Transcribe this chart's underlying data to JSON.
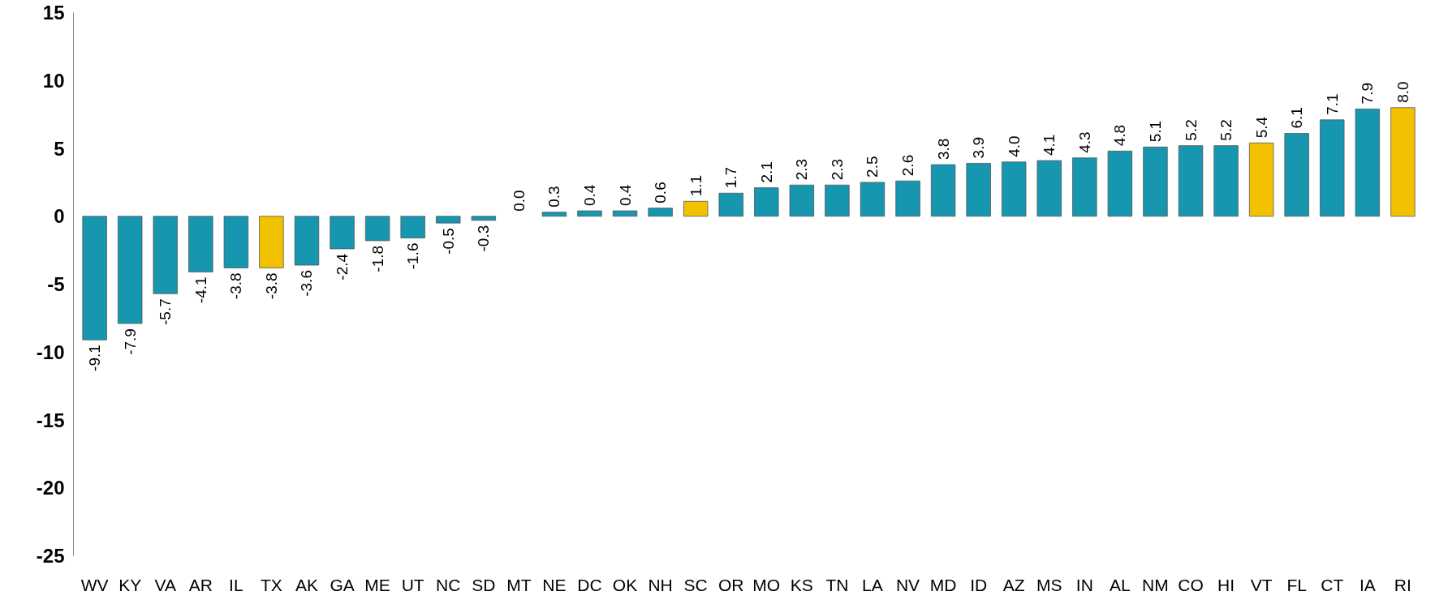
{
  "chart_data": {
    "type": "bar",
    "categories": [
      "WV",
      "KY",
      "VA",
      "AR",
      "IL",
      "TX",
      "AK",
      "GA",
      "ME",
      "UT",
      "NC",
      "SD",
      "MT",
      "NE",
      "DC",
      "OK",
      "NH",
      "SC",
      "OR",
      "MO",
      "KS",
      "TN",
      "LA",
      "NV",
      "MD",
      "ID",
      "AZ",
      "MS",
      "IN",
      "AL",
      "NM",
      "CO",
      "HI",
      "VT",
      "FL",
      "CT",
      "IA",
      "RI"
    ],
    "values": [
      -9.1,
      -7.9,
      -5.7,
      -4.1,
      -3.8,
      -3.8,
      -3.6,
      -2.4,
      -1.8,
      -1.6,
      -0.5,
      -0.3,
      0.0,
      0.3,
      0.4,
      0.4,
      0.6,
      1.1,
      1.7,
      2.1,
      2.3,
      2.3,
      2.5,
      2.6,
      3.8,
      3.9,
      4.0,
      4.1,
      4.3,
      4.8,
      5.1,
      5.2,
      5.2,
      5.4,
      6.1,
      7.1,
      7.9,
      8.0
    ],
    "value_labels": [
      "-9.1",
      "-7.9",
      "-5.7",
      "-4.1",
      "-3.8",
      "-3.8",
      "-3.6",
      "-2.4",
      "-1.8",
      "-1.6",
      "-0.5",
      "-0.3",
      "0.0",
      "0.3",
      "0.4",
      "0.4",
      "0.6",
      "1.1",
      "1.7",
      "2.1",
      "2.3",
      "2.3",
      "2.5",
      "2.6",
      "3.8",
      "3.9",
      "4.0",
      "4.1",
      "4.3",
      "4.8",
      "5.1",
      "5.2",
      "5.2",
      "5.4",
      "6.1",
      "7.1",
      "7.9",
      "8.0"
    ],
    "colors": [
      "#1796b0",
      "#1796b0",
      "#1796b0",
      "#1796b0",
      "#1796b0",
      "#f2c200",
      "#1796b0",
      "#1796b0",
      "#1796b0",
      "#1796b0",
      "#1796b0",
      "#1796b0",
      "#1796b0",
      "#1796b0",
      "#1796b0",
      "#1796b0",
      "#1796b0",
      "#f2c200",
      "#1796b0",
      "#1796b0",
      "#1796b0",
      "#1796b0",
      "#1796b0",
      "#1796b0",
      "#1796b0",
      "#1796b0",
      "#1796b0",
      "#1796b0",
      "#1796b0",
      "#1796b0",
      "#1796b0",
      "#1796b0",
      "#1796b0",
      "#f2c200",
      "#1796b0",
      "#1796b0",
      "#1796b0",
      "#f2c200"
    ],
    "ylim": [
      -25,
      15
    ],
    "yticks": [
      -25,
      -20,
      -15,
      -10,
      -5,
      0,
      5,
      10,
      15
    ],
    "grid": false
  }
}
